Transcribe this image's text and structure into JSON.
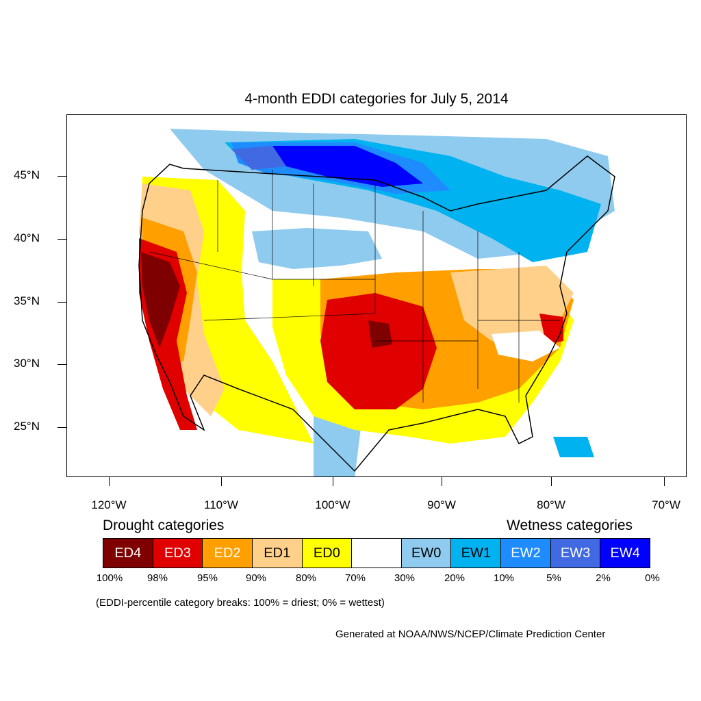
{
  "title": "4-month EDDI categories for July 5, 2014",
  "lat_labels": [
    "45°N",
    "40°N",
    "35°N",
    "30°N",
    "25°N"
  ],
  "lon_labels": [
    "120°W",
    "110°W",
    "100°W",
    "90°W",
    "80°W",
    "70°W"
  ],
  "legend": {
    "drought_heading": "Drought categories",
    "wetness_heading": "Wetness categories",
    "categories": [
      {
        "label": "ED4",
        "color": "#7f0000",
        "text_color": "#ffffff"
      },
      {
        "label": "ED3",
        "color": "#e00000",
        "text_color": "#ffffff"
      },
      {
        "label": "ED2",
        "color": "#ff9f00",
        "text_color": "#ffffff"
      },
      {
        "label": "ED1",
        "color": "#ffd08a",
        "text_color": "#000000"
      },
      {
        "label": "ED0",
        "color": "#ffff00",
        "text_color": "#000000"
      },
      {
        "label": "",
        "color": "#ffffff",
        "text_color": "#000000"
      },
      {
        "label": "EW0",
        "color": "#8fcbef",
        "text_color": "#000000"
      },
      {
        "label": "EW1",
        "color": "#00b2ef",
        "text_color": "#000000"
      },
      {
        "label": "EW2",
        "color": "#1e8cff",
        "text_color": "#ffffff"
      },
      {
        "label": "EW3",
        "color": "#4169e1",
        "text_color": "#ffffff"
      },
      {
        "label": "EW4",
        "color": "#0000ff",
        "text_color": "#ffffff"
      }
    ],
    "percentiles": [
      "100%",
      "98%",
      "95%",
      "90%",
      "80%",
      "70%",
      "30%",
      "20%",
      "10%",
      "5%",
      "2%",
      "0%"
    ]
  },
  "note": "(EDDI-percentile category breaks: 100% = driest; 0% = wettest)",
  "credit": "Generated at NOAA/NWS/NCEP/Climate Prediction Center"
}
